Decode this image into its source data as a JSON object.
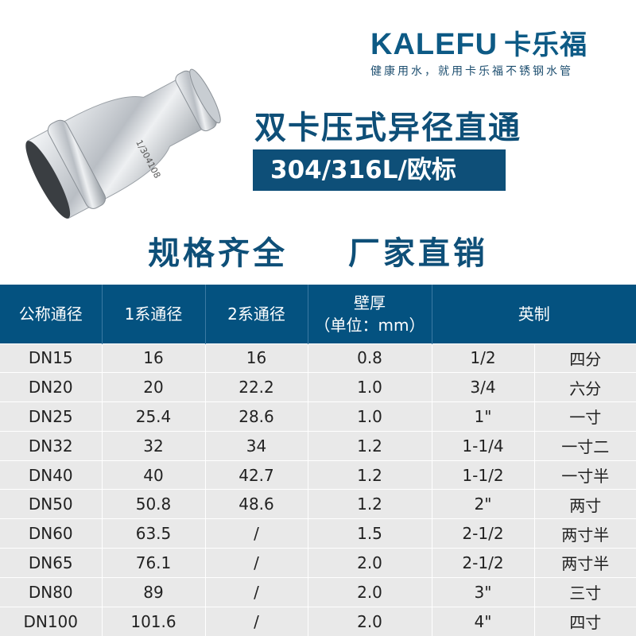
{
  "brand": {
    "name_en": "KALEFU",
    "name_cn": "卡乐福",
    "slogan": "健康用水，就用卡乐福不锈钢水管"
  },
  "product": {
    "title": "双卡压式异径直通",
    "material": "304/316L/欧标",
    "slogan": "规格齐全  厂家直销",
    "marking": "1/304108"
  },
  "colors": {
    "brand_blue": "#0e4f78",
    "header_blue": "#045280",
    "accent_orange": "#f0a030"
  },
  "table": {
    "headers": [
      "公称通径",
      "1系通径",
      "2系通径",
      "壁厚",
      "（单位：mm）",
      "英制"
    ],
    "rows": [
      [
        "DN15",
        "16",
        "16",
        "0.8",
        "1/2",
        "四分"
      ],
      [
        "DN20",
        "20",
        "22.2",
        "1.0",
        "3/4",
        "六分"
      ],
      [
        "DN25",
        "25.4",
        "28.6",
        "1.0",
        "1\"",
        "一寸"
      ],
      [
        "DN32",
        "32",
        "34",
        "1.2",
        "1-1/4",
        "一寸二"
      ],
      [
        "DN40",
        "40",
        "42.7",
        "1.2",
        "1-1/2",
        "一寸半"
      ],
      [
        "DN50",
        "50.8",
        "48.6",
        "1.2",
        "2\"",
        "两寸"
      ],
      [
        "DN60",
        "63.5",
        "/",
        "1.5",
        "2-1/2",
        "两寸半"
      ],
      [
        "DN65",
        "76.1",
        "/",
        "2.0",
        "2-1/2",
        "两寸半"
      ],
      [
        "DN80",
        "89",
        "/",
        "2.0",
        "3\"",
        "三寸"
      ],
      [
        "DN100",
        "101.6",
        "/",
        "2.0",
        "4\"",
        "四寸"
      ]
    ]
  }
}
